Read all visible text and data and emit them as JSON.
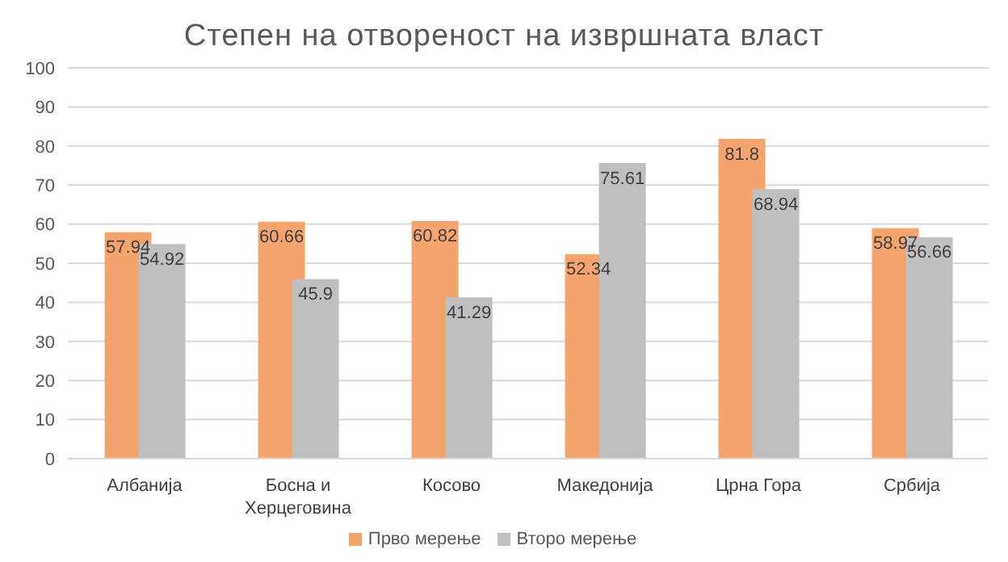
{
  "chart_data": {
    "type": "bar",
    "title": "Степен на отвореност на извршната власт",
    "categories": [
      "Албанија",
      "Босна и Херцеговина",
      "Косово",
      "Македонија",
      "Црна Гора",
      "Србија"
    ],
    "series": [
      {
        "name": "Прво мерење",
        "color": "#f4a46c",
        "values": [
          57.94,
          60.66,
          60.82,
          52.34,
          81.8,
          58.97
        ]
      },
      {
        "name": "Второ мерење",
        "color": "#bfbfbf",
        "values": [
          54.92,
          45.9,
          41.29,
          75.61,
          68.94,
          56.66
        ]
      }
    ],
    "ylim": [
      0,
      100
    ],
    "yticks": [
      0,
      10,
      20,
      30,
      40,
      50,
      60,
      70,
      80,
      90,
      100
    ],
    "grid": "y",
    "legend": "bottom",
    "data_labels": true
  }
}
